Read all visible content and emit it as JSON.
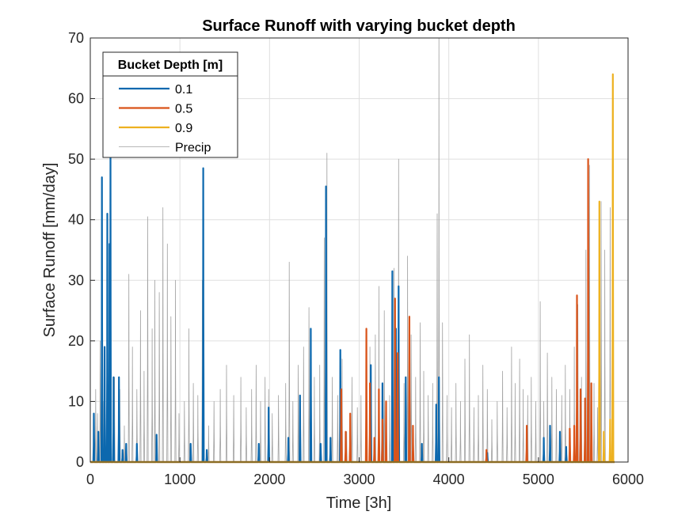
{
  "chart_data": {
    "type": "line",
    "title": "Surface Runoff with varying bucket depth",
    "xlabel": "Time [3h]",
    "ylabel": "Surface Runoff [mm/day]",
    "xlim": [
      0,
      6000
    ],
    "ylim": [
      0,
      70
    ],
    "xticks": [
      0,
      1000,
      2000,
      3000,
      4000,
      5000,
      6000
    ],
    "yticks": [
      0,
      10,
      20,
      30,
      40,
      50,
      60,
      70
    ],
    "xtick_labels": [
      "0",
      "1000",
      "2000",
      "3000",
      "4000",
      "5000",
      "6000"
    ],
    "ytick_labels": [
      "0",
      "10",
      "20",
      "30",
      "40",
      "50",
      "60",
      "70"
    ],
    "grid": true,
    "legend": {
      "title": "Bucket Depth [m]",
      "position": "top-left"
    },
    "series": [
      {
        "name": "Precip",
        "color": "#a0a0a0",
        "peaks": [
          [
            60,
            12
          ],
          [
            80,
            8
          ],
          [
            110,
            20
          ],
          [
            150,
            10
          ],
          [
            190,
            18
          ],
          [
            230,
            9
          ],
          [
            270,
            14
          ],
          [
            330,
            12
          ],
          [
            380,
            6
          ],
          [
            430,
            31
          ],
          [
            470,
            19
          ],
          [
            520,
            12
          ],
          [
            560,
            25
          ],
          [
            600,
            15
          ],
          [
            640,
            40.5
          ],
          [
            690,
            22
          ],
          [
            720,
            30
          ],
          [
            770,
            28
          ],
          [
            810,
            42
          ],
          [
            860,
            36
          ],
          [
            900,
            24
          ],
          [
            950,
            30
          ],
          [
            990,
            8
          ],
          [
            1050,
            10
          ],
          [
            1100,
            22
          ],
          [
            1150,
            13
          ],
          [
            1200,
            11
          ],
          [
            1250,
            30
          ],
          [
            1260,
            48
          ],
          [
            1320,
            6
          ],
          [
            1380,
            10
          ],
          [
            1450,
            12
          ],
          [
            1520,
            16
          ],
          [
            1600,
            11
          ],
          [
            1680,
            14
          ],
          [
            1740,
            9
          ],
          [
            1800,
            12
          ],
          [
            1850,
            16
          ],
          [
            1900,
            10
          ],
          [
            1950,
            14
          ],
          [
            1990,
            12
          ],
          [
            2030,
            8
          ],
          [
            2100,
            11
          ],
          [
            2180,
            13
          ],
          [
            2220,
            33
          ],
          [
            2260,
            10
          ],
          [
            2320,
            16
          ],
          [
            2380,
            19
          ],
          [
            2440,
            25.5
          ],
          [
            2500,
            14
          ],
          [
            2560,
            16
          ],
          [
            2610,
            37
          ],
          [
            2640,
            51
          ],
          [
            2700,
            14
          ],
          [
            2760,
            11
          ],
          [
            2810,
            17
          ],
          [
            2860,
            5
          ],
          [
            2920,
            14
          ],
          [
            2980,
            9
          ],
          [
            3020,
            11
          ],
          [
            3080,
            12
          ],
          [
            3120,
            19
          ],
          [
            3180,
            21
          ],
          [
            3220,
            29
          ],
          [
            3280,
            25
          ],
          [
            3340,
            11
          ],
          [
            3390,
            32
          ],
          [
            3440,
            50
          ],
          [
            3500,
            13
          ],
          [
            3540,
            34
          ],
          [
            3580,
            21
          ],
          [
            3630,
            14
          ],
          [
            3680,
            23
          ],
          [
            3720,
            15
          ],
          [
            3770,
            11
          ],
          [
            3820,
            13
          ],
          [
            3870,
            41
          ],
          [
            3890,
            70
          ],
          [
            3930,
            23
          ],
          [
            3980,
            11
          ],
          [
            4030,
            9
          ],
          [
            4080,
            13
          ],
          [
            4130,
            10
          ],
          [
            4180,
            17
          ],
          [
            4230,
            21
          ],
          [
            4280,
            9
          ],
          [
            4330,
            11
          ],
          [
            4380,
            16
          ],
          [
            4430,
            12
          ],
          [
            4480,
            7
          ],
          [
            4540,
            10
          ],
          [
            4600,
            15
          ],
          [
            4650,
            9
          ],
          [
            4700,
            19
          ],
          [
            4740,
            13
          ],
          [
            4790,
            17
          ],
          [
            4830,
            12
          ],
          [
            4880,
            11
          ],
          [
            4920,
            14
          ],
          [
            4970,
            10
          ],
          [
            5020,
            26.5
          ],
          [
            5060,
            10
          ],
          [
            5100,
            18
          ],
          [
            5150,
            14
          ],
          [
            5200,
            12
          ],
          [
            5260,
            11
          ],
          [
            5300,
            16
          ],
          [
            5350,
            12
          ],
          [
            5400,
            19
          ],
          [
            5440,
            26
          ],
          [
            5480,
            14
          ],
          [
            5530,
            35
          ],
          [
            5570,
            49
          ],
          [
            5620,
            13
          ],
          [
            5660,
            9
          ],
          [
            5700,
            43
          ],
          [
            5740,
            35
          ],
          [
            5800,
            42
          ],
          [
            5830,
            64
          ]
        ]
      },
      {
        "name": "0.1",
        "color": "#0c68ae",
        "peaks": [
          [
            40,
            8
          ],
          [
            90,
            5
          ],
          [
            130,
            47
          ],
          [
            160,
            19
          ],
          [
            190,
            41
          ],
          [
            215,
            36
          ],
          [
            225,
            51
          ],
          [
            260,
            14
          ],
          [
            320,
            14
          ],
          [
            360,
            2
          ],
          [
            400,
            3
          ],
          [
            520,
            3
          ],
          [
            740,
            4.5
          ],
          [
            1120,
            3
          ],
          [
            1260,
            48.5
          ],
          [
            1300,
            2
          ],
          [
            1880,
            3
          ],
          [
            1990,
            9
          ],
          [
            2210,
            4
          ],
          [
            2340,
            11
          ],
          [
            2460,
            22
          ],
          [
            2570,
            3
          ],
          [
            2630,
            45.5
          ],
          [
            2680,
            4
          ],
          [
            2790,
            18.5
          ],
          [
            2900,
            3
          ],
          [
            3130,
            16
          ],
          [
            3260,
            13
          ],
          [
            3370,
            31.5
          ],
          [
            3410,
            22
          ],
          [
            3440,
            29
          ],
          [
            3520,
            14
          ],
          [
            3700,
            3
          ],
          [
            3860,
            9.5
          ],
          [
            3890,
            14
          ],
          [
            4430,
            1.5
          ],
          [
            5060,
            4
          ],
          [
            5130,
            6
          ],
          [
            5240,
            5
          ],
          [
            5310,
            2.5
          ]
        ]
      },
      {
        "name": "0.5",
        "color": "#d95319",
        "peaks": [
          [
            2800,
            12
          ],
          [
            2850,
            5
          ],
          [
            2900,
            8
          ],
          [
            3080,
            22
          ],
          [
            3120,
            13
          ],
          [
            3170,
            4
          ],
          [
            3220,
            12
          ],
          [
            3260,
            7
          ],
          [
            3300,
            10
          ],
          [
            3400,
            27
          ],
          [
            3430,
            18
          ],
          [
            3560,
            24
          ],
          [
            3600,
            6
          ],
          [
            4420,
            2
          ],
          [
            4870,
            6
          ],
          [
            5350,
            5.5
          ],
          [
            5400,
            6
          ],
          [
            5430,
            27.5
          ],
          [
            5470,
            12
          ],
          [
            5520,
            10.5
          ],
          [
            5555,
            50
          ],
          [
            5590,
            13
          ]
        ]
      },
      {
        "name": "0.9",
        "color": "#edb120",
        "peaks": [
          [
            5680,
            43
          ],
          [
            5730,
            5
          ],
          [
            5800,
            7
          ],
          [
            5830,
            64
          ]
        ]
      }
    ]
  }
}
